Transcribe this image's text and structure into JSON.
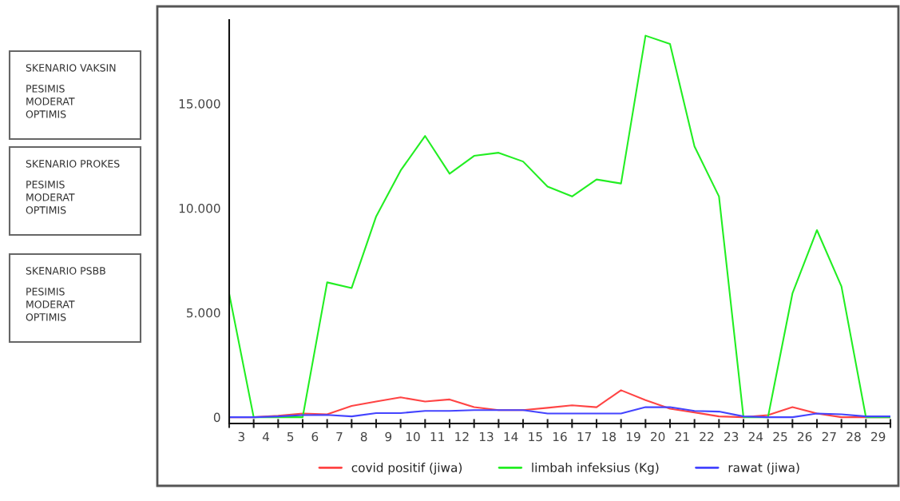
{
  "chart_data": {
    "type": "line",
    "x": [
      2.5,
      3.5,
      4.5,
      5.5,
      6.5,
      7.5,
      8.5,
      9.5,
      10.5,
      11.5,
      12.5,
      13.5,
      14.5,
      15.5,
      16.5,
      17.5,
      18.5,
      19.5,
      20.5,
      21.5,
      22.5,
      23.5,
      24.5,
      25.5,
      26.5,
      27.5,
      28.5,
      29.5
    ],
    "series": [
      {
        "name": "covid positif (jiwa)",
        "color": "#ff4444",
        "values": [
          0,
          0,
          70,
          180,
          140,
          540,
          750,
          950,
          750,
          850,
          480,
          340,
          340,
          450,
          570,
          480,
          1290,
          820,
          410,
          230,
          40,
          0,
          100,
          480,
          180,
          0,
          0,
          0
        ]
      },
      {
        "name": "limbah infeksius (Kg)",
        "color": "#22ee22",
        "values": [
          5900,
          0,
          0,
          0,
          6450,
          6180,
          9600,
          11800,
          13450,
          11650,
          12500,
          12650,
          12230,
          11030,
          10560,
          11370,
          11180,
          18250,
          17850,
          12950,
          10560,
          0,
          0,
          5920,
          8950,
          6260,
          0,
          0
        ]
      },
      {
        "name": "rawat (jiwa)",
        "color": "#4444ff",
        "values": [
          0,
          0,
          40,
          100,
          110,
          40,
          200,
          200,
          300,
          300,
          340,
          340,
          340,
          180,
          180,
          180,
          180,
          480,
          480,
          300,
          270,
          40,
          0,
          0,
          180,
          140,
          40,
          40
        ]
      }
    ],
    "xlim": [
      2.5,
      29.5
    ],
    "xticks": [
      {
        "value": 2.5,
        "label": null
      },
      3,
      {
        "value": 3.5,
        "label": null
      },
      4,
      {
        "value": 4.5,
        "label": null
      },
      5,
      {
        "value": 5.5,
        "label": null
      },
      6,
      {
        "value": 6.5,
        "label": null
      },
      7,
      {
        "value": 7.5,
        "label": null
      },
      8,
      {
        "value": 8.5,
        "label": null
      },
      9,
      {
        "value": 9.5,
        "label": null
      },
      10,
      {
        "value": 10.5,
        "label": null
      },
      11,
      {
        "value": 11.5,
        "label": null
      },
      12,
      {
        "value": 12.5,
        "label": null
      },
      13,
      {
        "value": 13.5,
        "label": null
      },
      14,
      {
        "value": 14.5,
        "label": null
      },
      15,
      {
        "value": 15.5,
        "label": null
      },
      16,
      {
        "value": 16.5,
        "label": null
      },
      17,
      {
        "value": 17.5,
        "label": null
      },
      18,
      {
        "value": 18.5,
        "label": null
      },
      19,
      {
        "value": 19.5,
        "label": null
      },
      20,
      {
        "value": 20.5,
        "label": null
      },
      21,
      {
        "value": 21.5,
        "label": null
      },
      22,
      {
        "value": 22.5,
        "label": null
      },
      23,
      {
        "value": 23.5,
        "label": null
      },
      24,
      {
        "value": 24.5,
        "label": null
      },
      25,
      {
        "value": 25.5,
        "label": null
      },
      26,
      {
        "value": 26.5,
        "label": null
      },
      27,
      {
        "value": 27.5,
        "label": null
      },
      28,
      {
        "value": 28.5,
        "label": null
      },
      29,
      {
        "value": 29.5,
        "label": null
      }
    ],
    "ylim": [
      -300,
      19000
    ],
    "yticks": [
      0,
      {
        "value": 5000,
        "label": "5.000"
      },
      {
        "value": 10000,
        "label": "10.000"
      },
      {
        "value": 15000,
        "label": "15.000"
      }
    ],
    "grid": false,
    "legend": "bottom",
    "marker": "none",
    "line_style": "solid",
    "annotations": [
      "SKENARIO VAKSIN",
      "PESIMIS",
      "MODERAT",
      "OPTIMIS",
      "SKENARIO PROKES",
      "PESIMIS",
      "MODERAT",
      "OPTIMIS",
      "SKENARIO PSBB",
      "PESIMIS",
      "MODERAT",
      "OPTIMIS"
    ]
  }
}
